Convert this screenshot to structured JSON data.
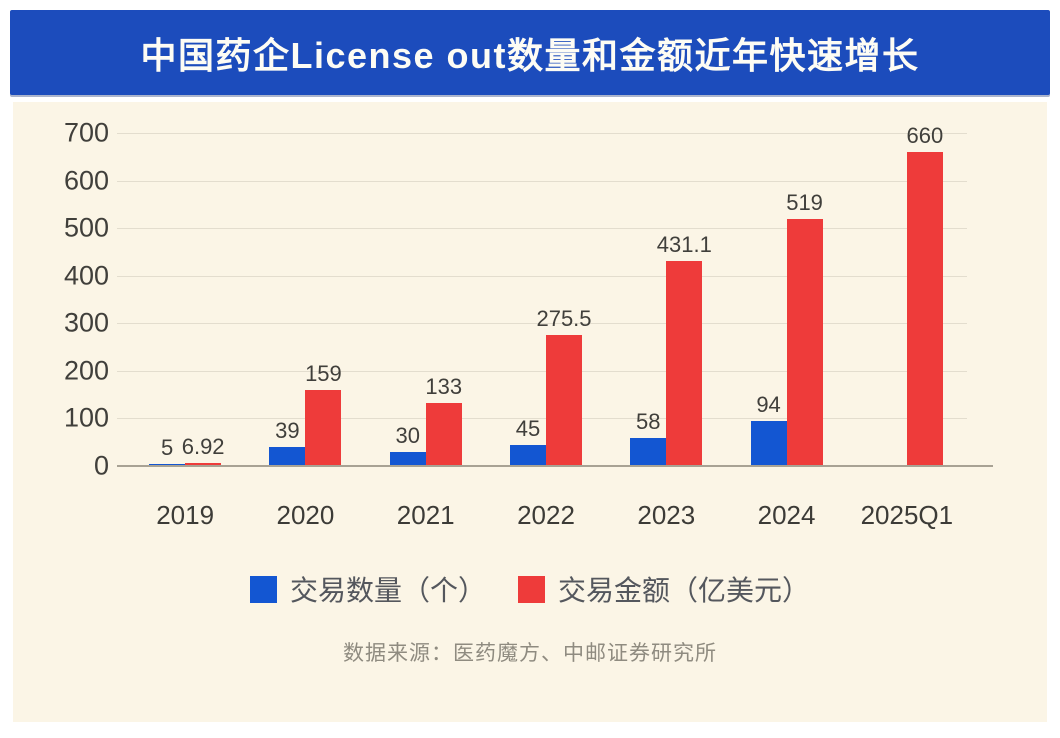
{
  "banner": {
    "title": "中国药企License out数量和金额近年快速增长",
    "bg_color": "#1c4cbc",
    "text_color": "#fdfcf4"
  },
  "chart_data": {
    "type": "bar",
    "title": "中国药企License out数量和金额近年快速增长",
    "categories": [
      "2019",
      "2020",
      "2021",
      "2022",
      "2023",
      "2024",
      "2025Q1"
    ],
    "series": [
      {
        "name": "交易数量（个）",
        "color": "#1356d2",
        "values": [
          5,
          39,
          30,
          45,
          58,
          94,
          null
        ]
      },
      {
        "name": "交易金额（亿美元）",
        "color": "#ee3b3a",
        "values": [
          6.92,
          159,
          133,
          275.5,
          431.1,
          519,
          660
        ]
      }
    ],
    "xlabel": "",
    "ylabel": "",
    "ylim": [
      0,
      700
    ],
    "yticks": [
      0,
      100,
      200,
      300,
      400,
      500,
      600,
      700
    ],
    "grid": true,
    "legend_position": "bottom",
    "background_color": "#fbf5e6"
  },
  "source": {
    "text": "数据来源：医药魔方、中邮证券研究所"
  }
}
